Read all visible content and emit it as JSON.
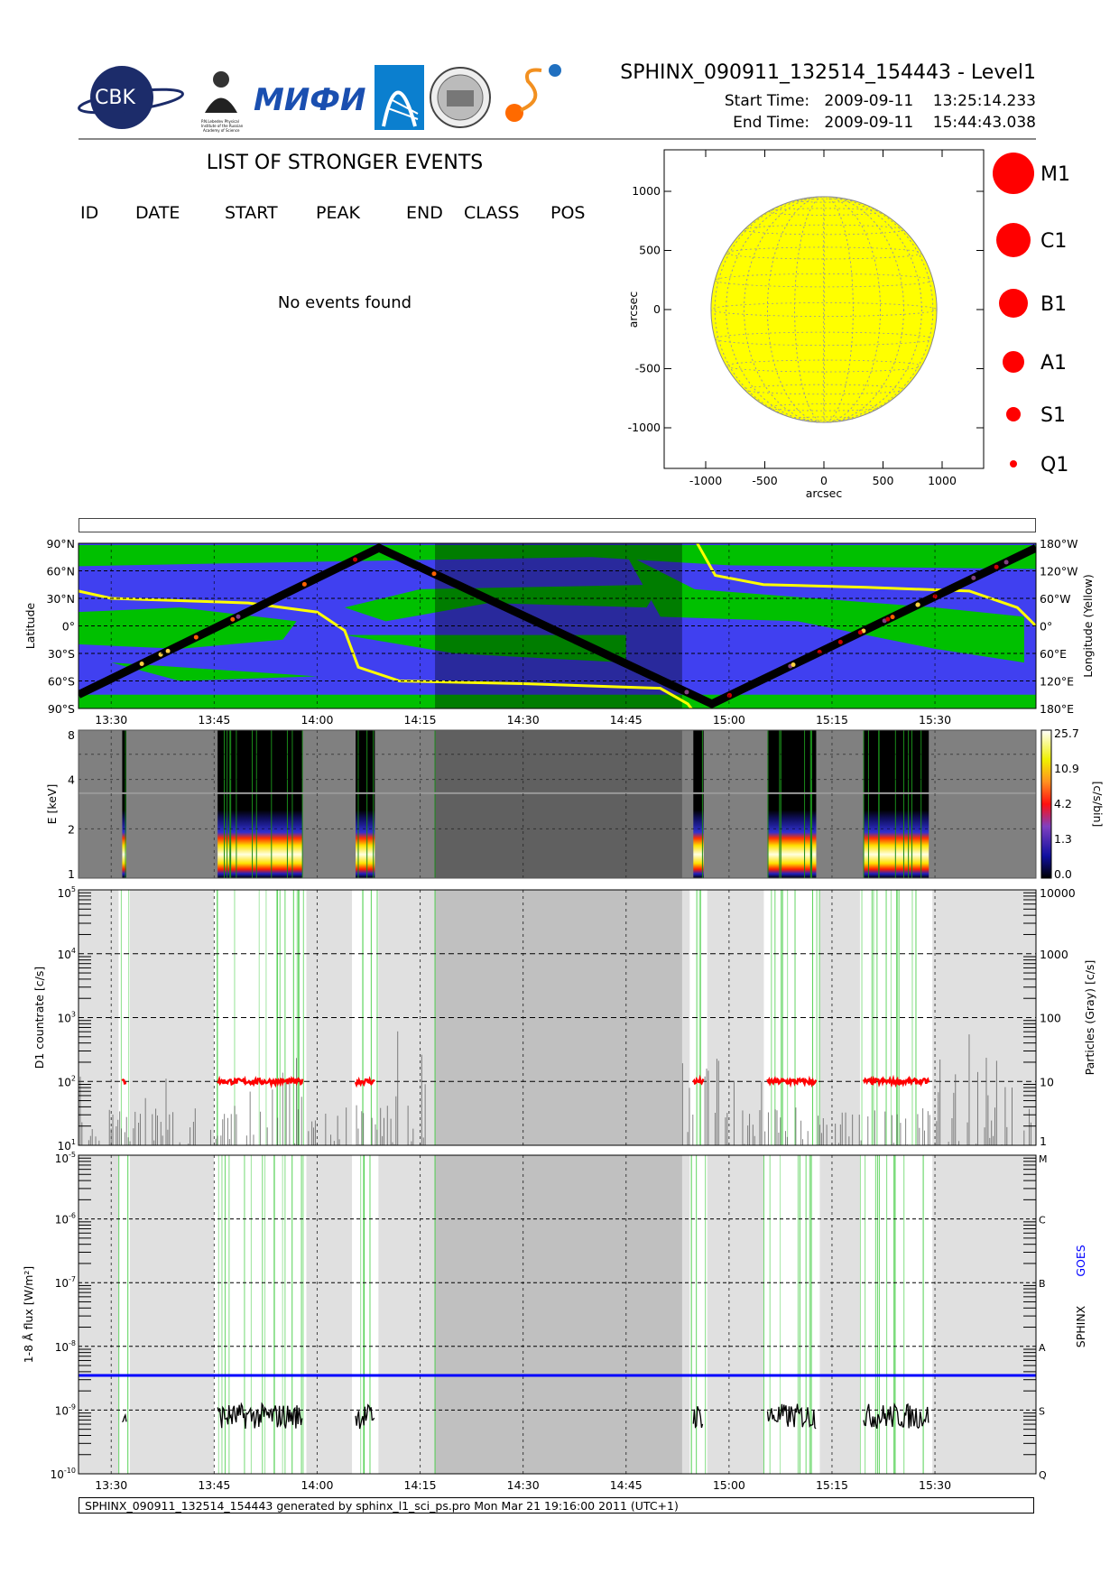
{
  "header": {
    "title": "SPHINX_090911_132514_154443 - Level1",
    "start_label": "Start Time:",
    "start_date": "2009-09-11",
    "start_time": "13:25:14.233",
    "end_label": "End Time:",
    "end_date": "2009-09-11",
    "end_time": "15:44:43.038",
    "logos": [
      {
        "name": "cbk-pan-logo",
        "text": "CBK",
        "sub": "PAN"
      },
      {
        "name": "lebedev-institute-logo",
        "text": "P.N.Lebedev Physical Institute of the Russian Academy of Science"
      },
      {
        "name": "mifi-logo",
        "text": "МИФИ"
      },
      {
        "name": "blue-arch-logo",
        "text": ""
      },
      {
        "name": "observatory-seal-logo",
        "text": ""
      },
      {
        "name": "sun-earth-logo",
        "text": ""
      }
    ]
  },
  "events": {
    "heading": "LIST OF STRONGER EVENTS",
    "columns": [
      "ID",
      "DATE",
      "START",
      "PEAK",
      "END",
      "CLASS",
      "POS"
    ],
    "empty_message": "No events found"
  },
  "footer": {
    "text": "SPHINX_090911_132514_154443 generated by sphinx_l1_sci_ps.pro Mon Mar 21 19:16:00 2011 (UTC+1)"
  },
  "colors": {
    "sun": "#ffff00",
    "event_marker": "#ff0000",
    "map_ocean": "#4040f0",
    "map_land": "#00c000",
    "orbit_track": "#000000",
    "longitude_line": "#ffff00",
    "sphinx_countrate": "#ff0000",
    "particles": "#505050",
    "goes": "#0000ff",
    "saa_lines": "#50d050"
  },
  "chart_data": [
    {
      "type": "scatter",
      "panel": "solar-disk",
      "xlabel": "arcsec",
      "ylabel": "arcsec",
      "xlim": [
        -1350,
        1350
      ],
      "ylim": [
        -1350,
        1350
      ],
      "xticks": [
        "-1000",
        "-500",
        "0",
        "500",
        "1000"
      ],
      "yticks": [
        "1000",
        "500",
        "0",
        "-500",
        "-1000"
      ],
      "events": [],
      "legend": {
        "placement": "right",
        "entries": [
          "M1",
          "C1",
          "B1",
          "A1",
          "S1",
          "Q1"
        ]
      }
    },
    {
      "type": "line",
      "panel": "orbit-map",
      "ylabel": "Latitude",
      "y2label": "Longitude (Yellow)",
      "yticks": [
        "90°N",
        "60°N",
        "30°N",
        "0°",
        "30°S",
        "60°S",
        "90°S"
      ],
      "y2ticks": [
        "180°W",
        "120°W",
        "60°W",
        "0°",
        "60°E",
        "120°E",
        "180°E"
      ],
      "xticks": [
        "13:30",
        "13:45",
        "14:00",
        "14:15",
        "14:30",
        "14:45",
        "15:00",
        "15:15",
        "15:30"
      ],
      "xlim": [
        "13:25:14",
        "15:44:43"
      ],
      "latitude_track": {
        "x": [
          "13:25:14",
          "14:09:00",
          "14:57:30",
          "15:44:43"
        ],
        "y": [
          -75,
          85,
          -85,
          85
        ]
      },
      "eclipse_interval": [
        "14:17:10",
        "14:53:10"
      ]
    },
    {
      "type": "heatmap",
      "panel": "spectrogram",
      "ylabel": "E [keV]",
      "yticks": [
        "8",
        "4",
        "2",
        "1"
      ],
      "ylim": [
        1,
        8
      ],
      "colorbar_label": "[c/s/bin]",
      "colorbar_ticks": [
        "25.7",
        "10.9",
        "4.2",
        "1.3",
        "0.0"
      ],
      "data_intervals": [
        [
          "13:31:36",
          "13:32:12"
        ],
        [
          "13:45:30",
          "13:57:54"
        ],
        [
          "14:05:36",
          "14:08:24"
        ],
        [
          "14:54:48",
          "14:56:18"
        ],
        [
          "15:05:36",
          "15:12:42"
        ],
        [
          "15:19:36",
          "15:29:06"
        ]
      ]
    },
    {
      "type": "line",
      "panel": "countrate",
      "ylabel": "D1 countrate [c/s]",
      "y2label": "Particles (Gray) [c/s]",
      "yscale": "log",
      "ylim": [
        10,
        100000
      ],
      "yticks": [
        "10^5",
        "10^4",
        "10^3",
        "10^2",
        "10^1"
      ],
      "y2ticks": [
        "10000",
        "1000",
        "100",
        "10",
        "1"
      ],
      "sphinx_level": 100,
      "particles_level_range": [
        1,
        30
      ]
    },
    {
      "type": "line",
      "panel": "flux",
      "ylabel": "1-8 Å flux [W/m²]",
      "y2label_sphinx": "SPHINX",
      "y2label_goes": "GOES",
      "yscale": "log",
      "ylim": [
        1e-10,
        1e-05
      ],
      "yticks": [
        "10^-5",
        "10^-6",
        "10^-7",
        "10^-8",
        "10^-9",
        "10^-10"
      ],
      "y2ticks": [
        "M",
        "C",
        "B",
        "A",
        "S",
        "Q"
      ],
      "xticks": [
        "13:30",
        "13:45",
        "14:00",
        "14:15",
        "14:30",
        "14:45",
        "15:00",
        "15:15",
        "15:30"
      ],
      "sphinx_flux_level": 8e-10,
      "goes_flux_level": 3.5e-09
    }
  ]
}
